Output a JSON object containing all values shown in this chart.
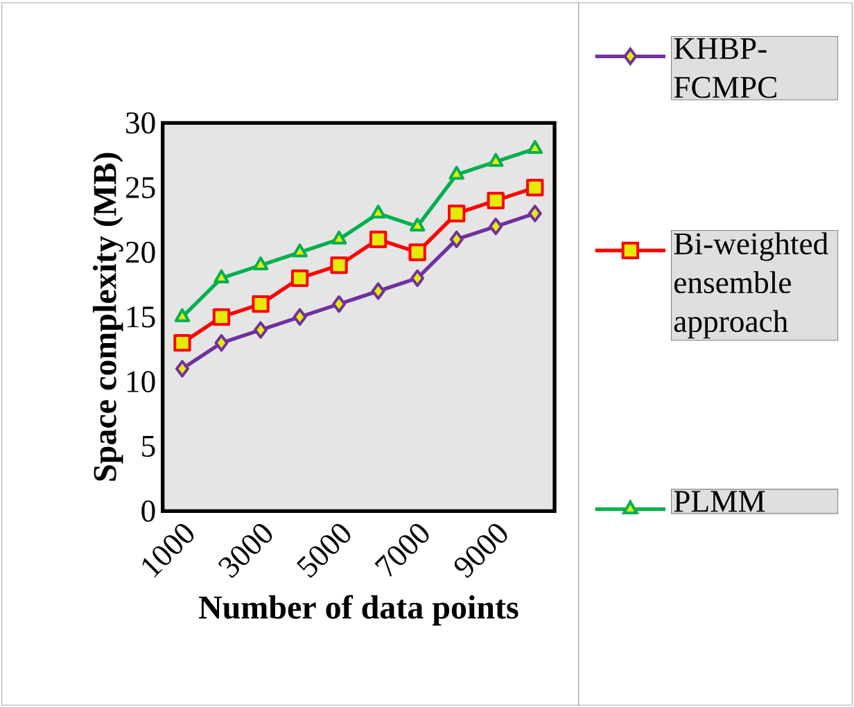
{
  "chart_data": {
    "type": "line",
    "xlabel": "Number of data points",
    "ylabel": "Space complexity (MB)",
    "categories": [
      "1000",
      null,
      "3000",
      null,
      "5000",
      null,
      "7000",
      null,
      "9000",
      null
    ],
    "series": [
      {
        "name": "KHBP-FCMPC",
        "color": "#7030a0",
        "marker": "diamond",
        "values": [
          11,
          13,
          14,
          15,
          16,
          17,
          18,
          21,
          22,
          23
        ]
      },
      {
        "name": "Bi-weighted ensemble approach",
        "color": "#ff0000",
        "marker": "square",
        "values": [
          13,
          15,
          16,
          18,
          19,
          21,
          20,
          23,
          24,
          25
        ]
      },
      {
        "name": "PLMM",
        "color": "#00b050",
        "marker": "triangle",
        "values": [
          15,
          18,
          19,
          20,
          21,
          23,
          22,
          26,
          27,
          28
        ]
      }
    ],
    "ylim": [
      0,
      30
    ],
    "yticks": [
      0,
      5,
      10,
      15,
      20,
      25,
      30
    ],
    "grid": false,
    "legend": "right",
    "line_style": "solid"
  }
}
